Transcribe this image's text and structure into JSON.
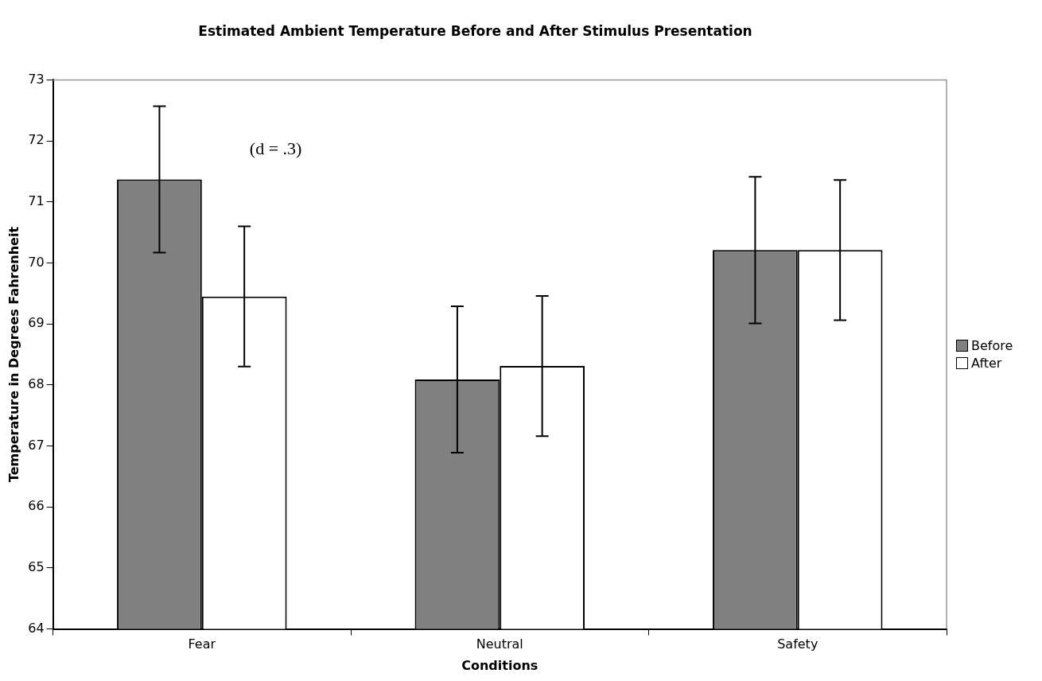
{
  "chart_data": {
    "type": "bar",
    "title": "Estimated Ambient Temperature Before and After Stimulus Presentation",
    "xlabel": "Conditions",
    "ylabel": "Temperature in Degrees Fahrenheit",
    "categories": [
      "Fear",
      "Neutral",
      "Safety"
    ],
    "series": [
      {
        "name": "Before",
        "color": "#808080",
        "values": [
          71.37,
          68.09,
          70.21
        ],
        "errors": [
          1.2,
          1.2,
          1.2
        ]
      },
      {
        "name": "After",
        "color": "#ffffff",
        "values": [
          69.45,
          68.31,
          70.21
        ],
        "errors": [
          1.15,
          1.15,
          1.15
        ]
      }
    ],
    "ylim": [
      64,
      73
    ],
    "yticks": [
      64,
      65,
      66,
      67,
      68,
      69,
      70,
      71,
      72,
      73
    ],
    "grid": false,
    "legend": "right",
    "annotations": [
      "(d = .3)"
    ]
  }
}
